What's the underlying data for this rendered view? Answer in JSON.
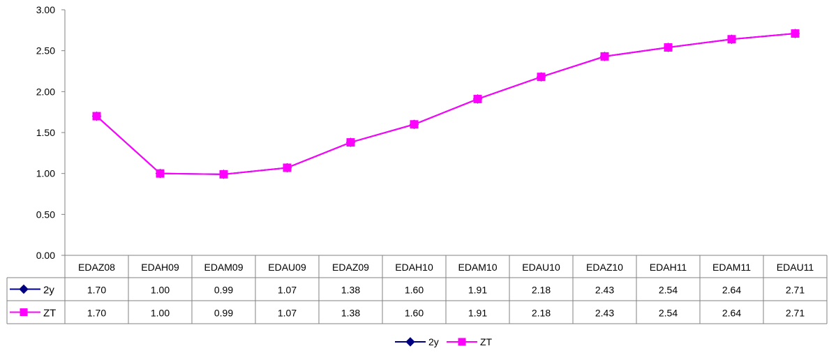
{
  "chart_data": {
    "type": "line",
    "title": "",
    "xlabel": "",
    "ylabel": "",
    "ylim": [
      0,
      3
    ],
    "yticks": [
      "0.00",
      "0.50",
      "1.00",
      "1.50",
      "2.00",
      "2.50",
      "3.00"
    ],
    "categories": [
      "EDAZ08",
      "EDAH09",
      "EDAM09",
      "EDAU09",
      "EDAZ09",
      "EDAH10",
      "EDAM10",
      "EDAU10",
      "EDAZ10",
      "EDAH11",
      "EDAM11",
      "EDAU11"
    ],
    "series": [
      {
        "name": "2y",
        "color": "#000080",
        "marker": "diamond",
        "values": [
          1.7,
          1.0,
          0.99,
          1.07,
          1.38,
          1.6,
          1.91,
          2.18,
          2.43,
          2.54,
          2.64,
          2.71
        ],
        "labels": [
          "1.70",
          "1.00",
          "0.99",
          "1.07",
          "1.38",
          "1.60",
          "1.91",
          "2.18",
          "2.43",
          "2.54",
          "2.64",
          "2.71"
        ]
      },
      {
        "name": "ZT",
        "color": "#ff00ff",
        "marker": "square",
        "values": [
          1.7,
          1.0,
          0.99,
          1.07,
          1.38,
          1.6,
          1.91,
          2.18,
          2.43,
          2.54,
          2.64,
          2.71
        ],
        "labels": [
          "1.70",
          "1.00",
          "0.99",
          "1.07",
          "1.38",
          "1.60",
          "1.91",
          "2.18",
          "2.43",
          "2.54",
          "2.64",
          "2.71"
        ]
      }
    ],
    "data_table": true,
    "grid": false,
    "legend_position": "bottom"
  }
}
